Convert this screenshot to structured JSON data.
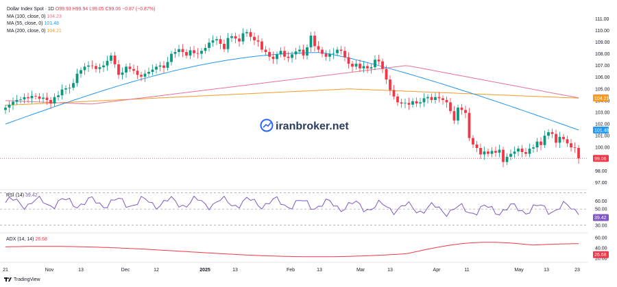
{
  "legend": {
    "symbol": "Dollar Index Spot · 1D",
    "ohlc": "O99.93 H99.94 L99.05 C99.06 −0.87 (−0.87%)",
    "ma100_label": "MA (100, close, 0)",
    "ma100_value": "104.23",
    "ma55_label": "MA (55, close, 0)",
    "ma55_value": "101.48",
    "ma200_label": "MA (200, close, 0)",
    "ma200_value": "104.21"
  },
  "watermark": "iranbroker.net",
  "rsi_pane": {
    "label": "RSI (14)",
    "value": "39.42"
  },
  "adx_pane": {
    "label": "ADX (14, 14)",
    "value": "26.68"
  },
  "footer_brand": "TradingView",
  "colors": {
    "up": "#089981",
    "down": "#f23645",
    "ma55": "#2196f3",
    "ma100": "#e57390",
    "ma200": "#f59a23",
    "rsi": "#7e57c2",
    "adx": "#f23645"
  },
  "chart_data": [
    {
      "type": "candlestick",
      "title": "Dollar Index Spot · 1D",
      "x_ticks": [
        "21",
        "Nov",
        "13",
        "Dec",
        "12",
        "2025",
        "13",
        "Feb",
        "13",
        "Mar",
        "13",
        "Apr",
        "11",
        "May",
        "13",
        "23"
      ],
      "y_ticks": [
        97.0,
        98.0,
        99.0,
        100.0,
        101.0,
        102.0,
        103.0,
        104.0,
        105.0,
        106.0,
        107.0,
        108.0,
        109.0,
        110.0,
        111.0
      ],
      "ylim": [
        96.5,
        111.6
      ],
      "closes": [
        103.4,
        103.65,
        103.9,
        104.05,
        104.1,
        104.3,
        104.2,
        104.4,
        104.35,
        104.15,
        104.25,
        104.05,
        103.75,
        104.3,
        104.45,
        104.95,
        105.05,
        105.1,
        105.5,
        106.3,
        106.6,
        106.9,
        107.0,
        106.95,
        106.7,
        106.85,
        107.0,
        107.4,
        107.85,
        107.1,
        106.2,
        106.4,
        106.9,
        106.7,
        106.55,
        106.2,
        106.05,
        106.3,
        106.45,
        106.65,
        106.9,
        107.0,
        106.8,
        107.3,
        108.0,
        108.15,
        108.4,
        108.15,
        107.85,
        108.3,
        108.05,
        108.0,
        108.25,
        108.5,
        108.95,
        109.15,
        109.25,
        108.85,
        108.4,
        109.35,
        109.5,
        109.3,
        109.05,
        109.75,
        109.85,
        109.45,
        109.15,
        109.05,
        108.35,
        108.15,
        107.75,
        107.55,
        107.95,
        108.25,
        107.75,
        107.65,
        107.95,
        108.2,
        108.35,
        107.85,
        108.55,
        109.55,
        108.65,
        108.35,
        108.0,
        107.75,
        108.0,
        108.05,
        108.35,
        108.25,
        107.7,
        107.15,
        106.9,
        107.15,
        106.75,
        106.95,
        106.75,
        106.85,
        107.5,
        107.35,
        106.7,
        105.8,
        104.9,
        104.35,
        103.85,
        103.75,
        103.8,
        103.65,
        103.95,
        103.75,
        103.85,
        104.2,
        104.3,
        104.05,
        104.3,
        104.2,
        104.05,
        103.85,
        103.1,
        102.3,
        103.4,
        103.2,
        102.95,
        100.8,
        100.25,
        99.95,
        99.4,
        99.65,
        99.45,
        99.7,
        99.55,
        99.8,
        98.75,
        99.2,
        99.45,
        99.65,
        99.9,
        99.6,
        99.45,
        99.9,
        100.0,
        100.5,
        100.2,
        101.0,
        101.3,
        101.15,
        100.4,
        100.9,
        100.7,
        100.35,
        100.0,
        99.95,
        99.06
      ],
      "last_close": 99.06,
      "series": [
        {
          "name": "MA (55, close, 0)",
          "last": 101.48
        },
        {
          "name": "MA (100, close, 0)",
          "last": 104.23
        },
        {
          "name": "MA (200, close, 0)",
          "last": 104.21
        }
      ]
    },
    {
      "type": "line",
      "title": "RSI (14)",
      "y_ticks": [
        30.0,
        40.0,
        50.0,
        60.0
      ],
      "ylim": [
        23,
        68
      ],
      "guide_lines": [
        70,
        50,
        30
      ],
      "last": 39.42
    },
    {
      "type": "line",
      "title": "ADX (14, 14)",
      "y_ticks": [
        20.0,
        40.0,
        60.0
      ],
      "ylim": [
        17,
        65
      ],
      "last": 26.68
    }
  ]
}
